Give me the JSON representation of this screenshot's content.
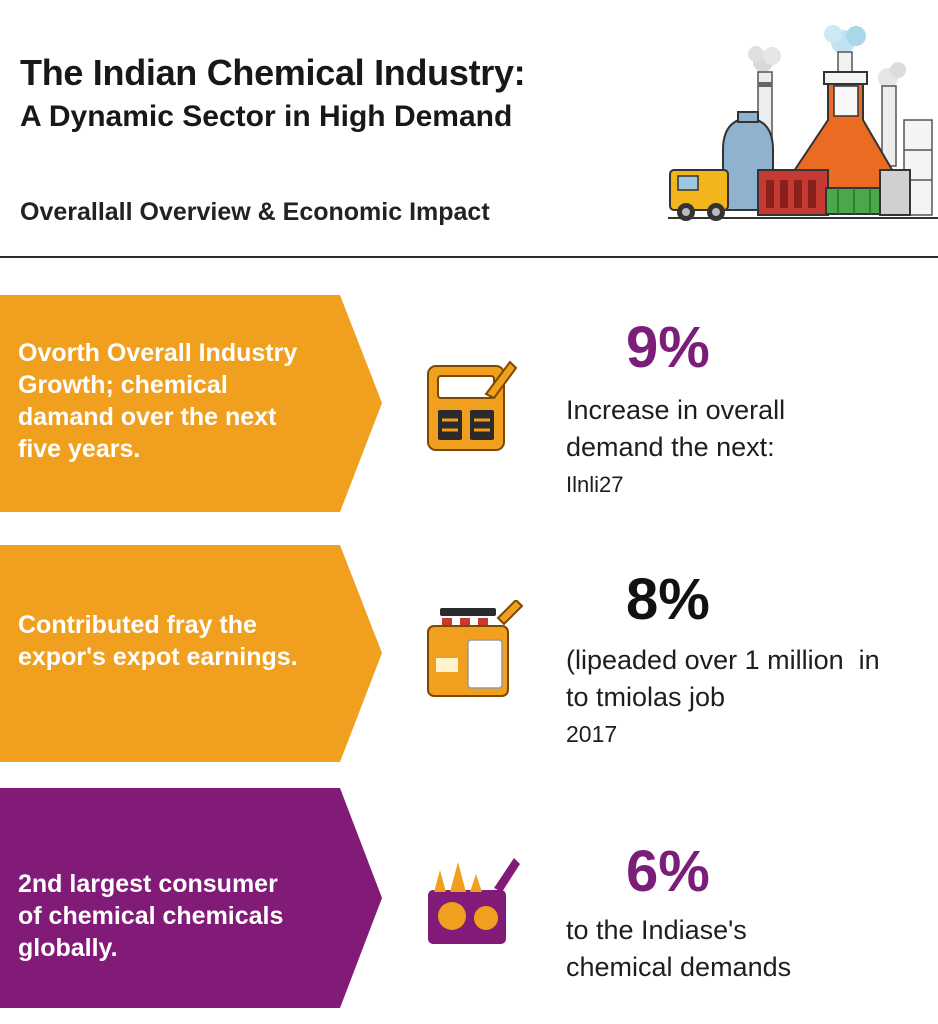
{
  "header": {
    "title_line1": "The Indian Chemical Industry:",
    "title_line2": "A Dynamic Sector in High Demand",
    "subtitle": "Overallall Overview & Economic Impact",
    "illustration_icon": "chemical-factory-icon"
  },
  "rows": [
    {
      "chevron_color": "#F0A01E",
      "text": [
        "Ovorth Overall Industry",
        "Growth; chemical",
        "damand over the next",
        "five years."
      ],
      "icon": "calculator-icon",
      "value": "9%",
      "value_color": "#7B1E7A",
      "desc": [
        "Increase in overall",
        "demand the next:",
        "Ilnli27"
      ]
    },
    {
      "chevron_color": "#F0A01E",
      "text": [
        "Contributed fray the",
        "expor's expot earnings."
      ],
      "icon": "battery-pack-icon",
      "value": "8%",
      "value_color": "#111111",
      "desc": [
        "(lipeaded over 1 million  in",
        "to tmiolas job",
        "2017"
      ]
    },
    {
      "chevron_color": "#821A78",
      "text": [
        "2nd largest consumer",
        "of chemical chemicals",
        "globally."
      ],
      "icon": "flasks-icon",
      "value": "6%",
      "value_color": "#7B1E7A",
      "desc": [
        "to the Indiase's",
        "chemical demands"
      ]
    }
  ],
  "colors": {
    "orange": "#F0A01E",
    "purple": "#821A78",
    "divider": "#2B2B2B"
  }
}
